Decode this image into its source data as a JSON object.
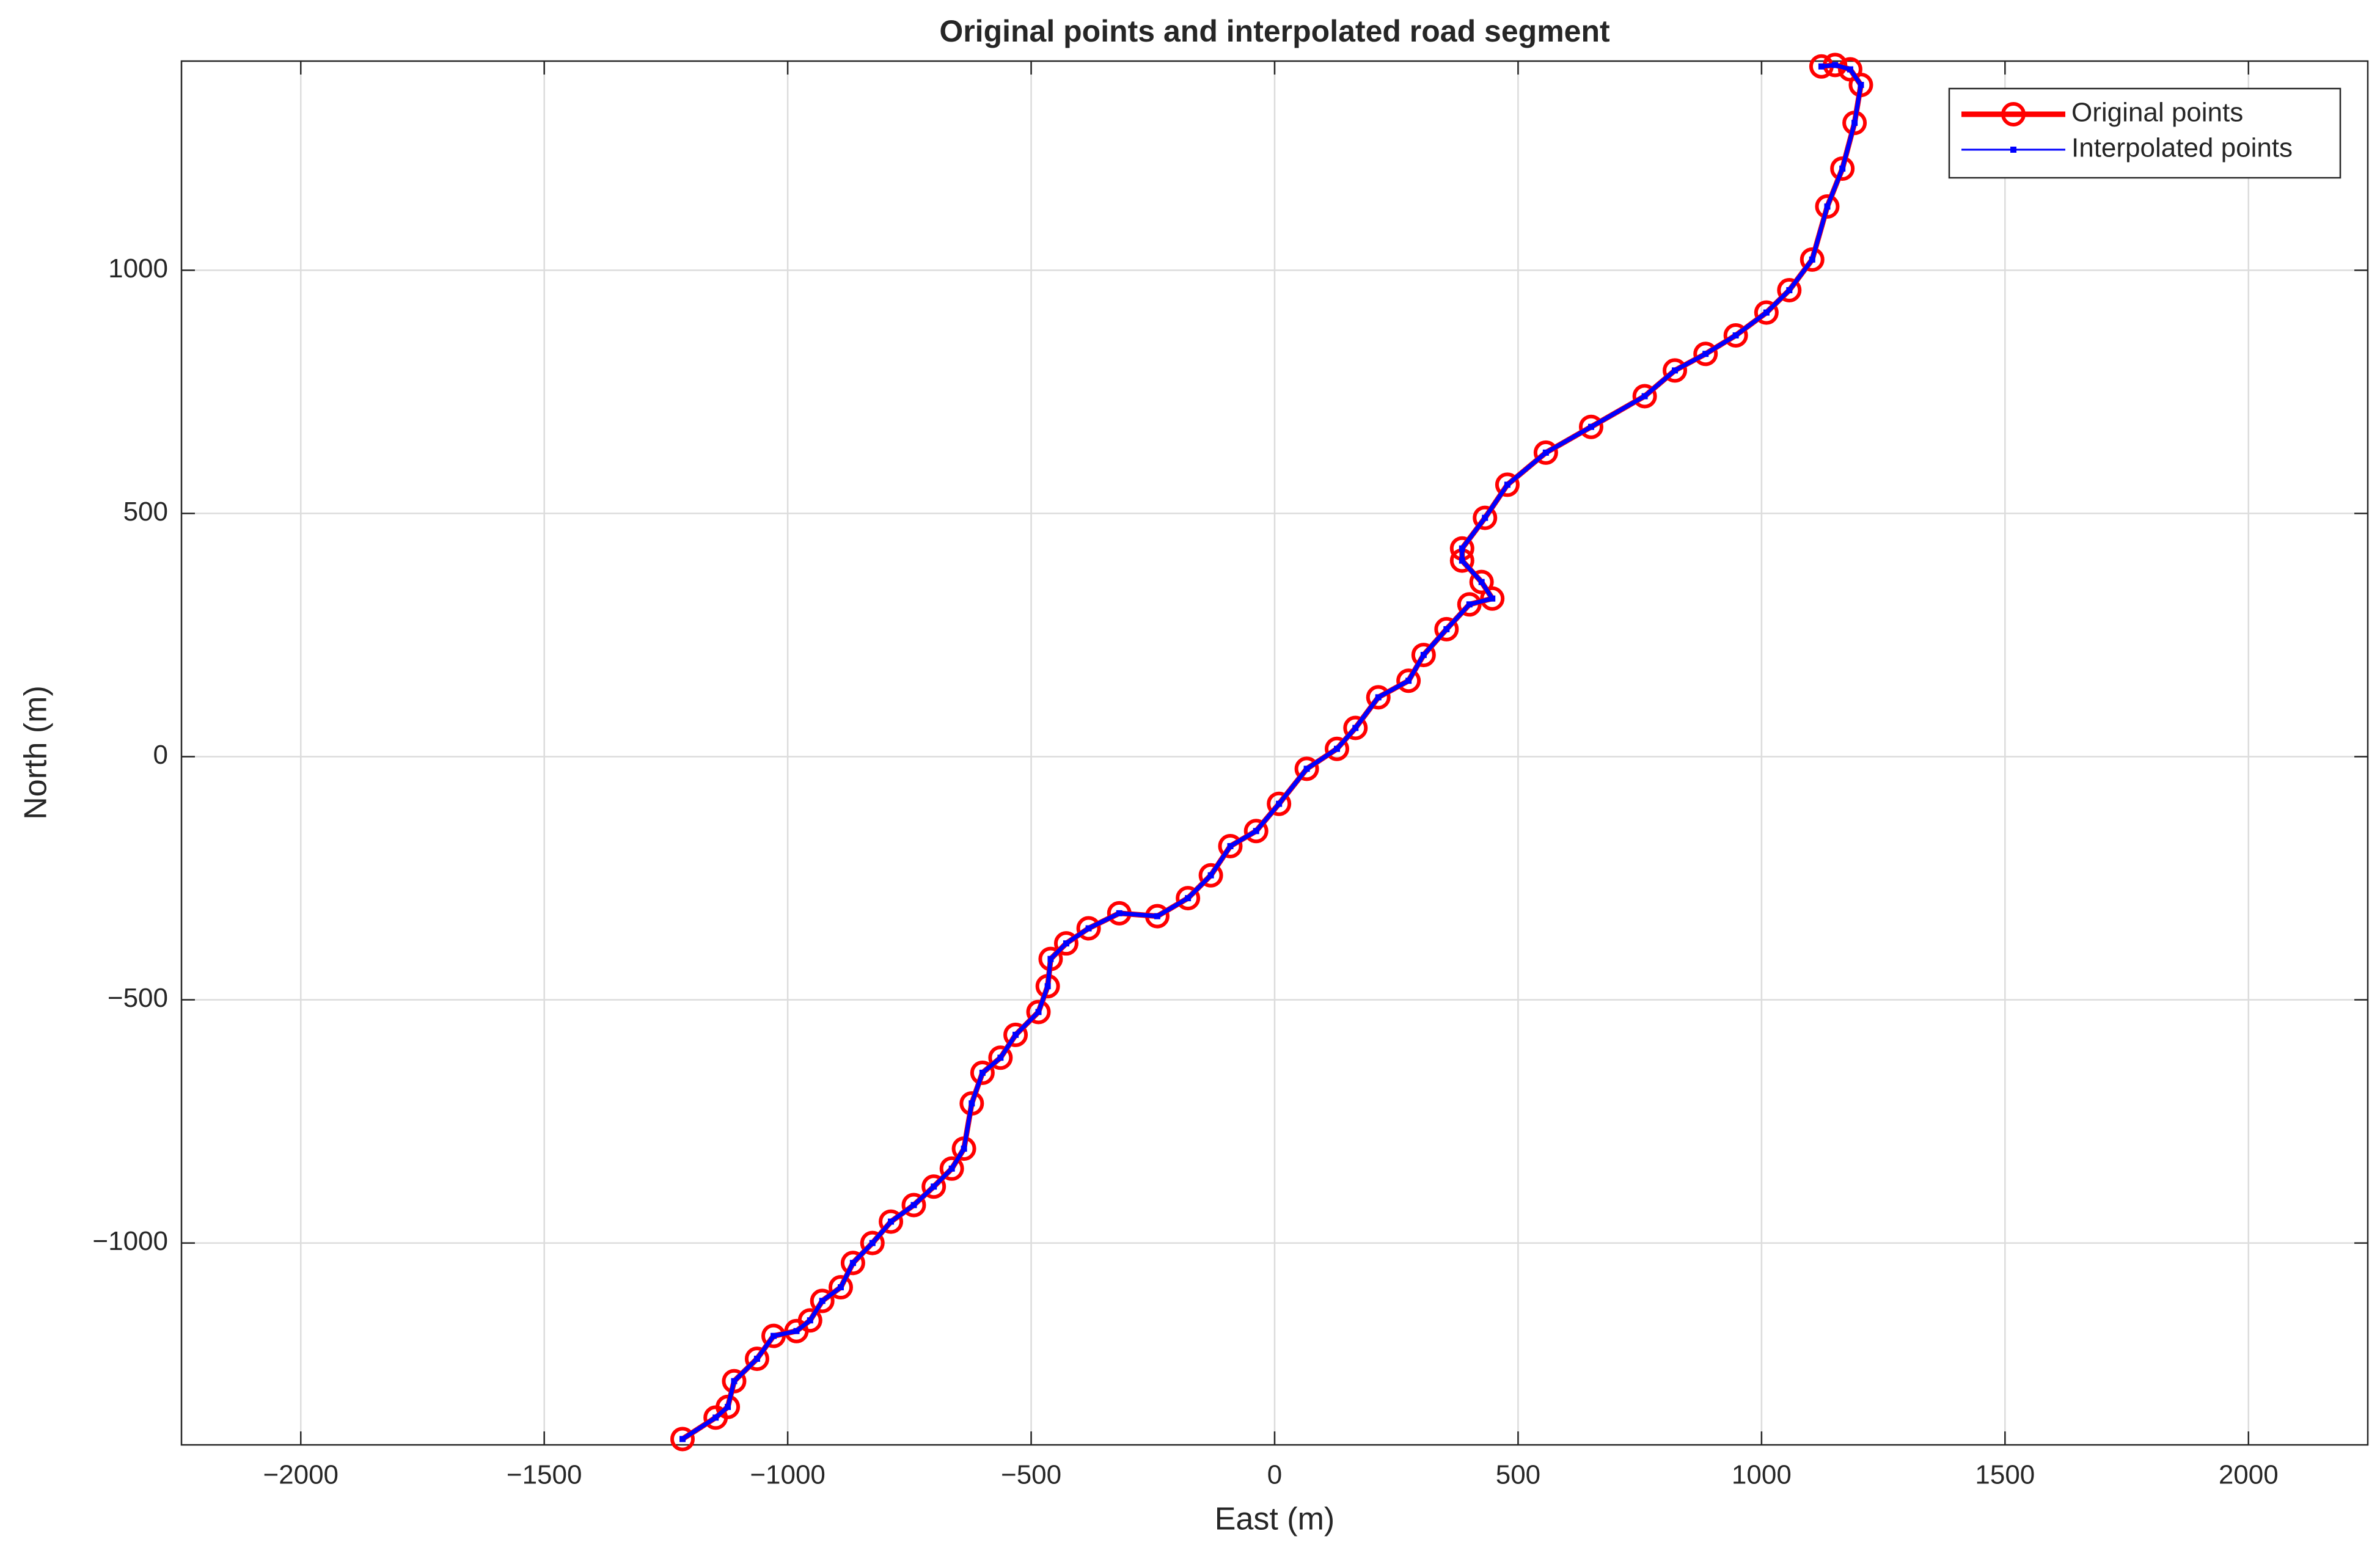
{
  "chart_data": {
    "type": "line",
    "title": "Original points and interpolated road segment",
    "x_label": "East (m)",
    "y_label": "North (m)",
    "xlim": [
      -2245,
      2245
    ],
    "ylim": [
      -1415,
      1430
    ],
    "xticks": [
      {
        "value": -2000,
        "label": "−2000"
      },
      {
        "value": -1500,
        "label": "−1500"
      },
      {
        "value": -1000,
        "label": "−1000"
      },
      {
        "value": -500,
        "label": "−500"
      },
      0,
      500,
      1000,
      1500,
      2000
    ],
    "yticks": [
      {
        "value": -1000,
        "label": "−1000"
      },
      {
        "value": -500,
        "label": "−500"
      },
      0,
      500,
      1000
    ],
    "grid": true,
    "legend": "northeast",
    "series": [
      {
        "name": "Original points",
        "color": "#ff0000",
        "marker": "circle",
        "x": [
          -1216,
          -1148,
          -1123,
          -1110,
          -1063,
          -1029,
          -982,
          -954,
          -929,
          -891,
          -866,
          -826,
          -788,
          -741,
          -700,
          -663,
          -638,
          -622,
          -600,
          -563,
          -532,
          -485,
          -466,
          -460,
          -428,
          -382,
          -319,
          -241,
          -178,
          -131,
          -91,
          -38,
          9,
          66,
          128,
          166,
          213,
          275,
          306,
          353,
          400,
          447,
          425,
          385,
          385,
          432,
          478,
          557,
          650,
          760,
          822,
          885,
          947,
          1010,
          1057,
          1104,
          1135,
          1166,
          1191,
          1204,
          1182,
          1151,
          1123
        ],
        "y": [
          -1403,
          -1359,
          -1337,
          -1284,
          -1238,
          -1191,
          -1181,
          -1159,
          -1119,
          -1091,
          -1041,
          -1000,
          -956,
          -922,
          -884,
          -847,
          -806,
          -713,
          -650,
          -619,
          -572,
          -525,
          -472,
          -416,
          -384,
          -353,
          -322,
          -328,
          -291,
          -244,
          -184,
          -153,
          -97,
          -25,
          16,
          59,
          122,
          156,
          209,
          262,
          313,
          325,
          359,
          403,
          428,
          491,
          559,
          625,
          678,
          741,
          794,
          828,
          866,
          913,
          959,
          1022,
          1131,
          1209,
          1303,
          1381,
          1413,
          1422,
          1419
        ]
      },
      {
        "name": "Interpolated points",
        "color": "#0000ff",
        "marker": "point",
        "x": [
          -1216,
          -1148,
          -1123,
          -1110,
          -1063,
          -1029,
          -982,
          -954,
          -929,
          -891,
          -866,
          -826,
          -788,
          -741,
          -700,
          -663,
          -638,
          -622,
          -600,
          -563,
          -532,
          -485,
          -466,
          -460,
          -428,
          -382,
          -319,
          -241,
          -178,
          -131,
          -91,
          -38,
          9,
          66,
          128,
          166,
          213,
          275,
          306,
          353,
          400,
          447,
          425,
          385,
          385,
          432,
          478,
          557,
          650,
          760,
          822,
          885,
          947,
          1010,
          1057,
          1104,
          1135,
          1166,
          1191,
          1204,
          1182,
          1151,
          1123
        ],
        "y": [
          -1403,
          -1359,
          -1337,
          -1284,
          -1238,
          -1191,
          -1181,
          -1159,
          -1119,
          -1091,
          -1041,
          -1000,
          -956,
          -922,
          -884,
          -847,
          -806,
          -713,
          -650,
          -619,
          -572,
          -525,
          -472,
          -416,
          -384,
          -353,
          -322,
          -328,
          -291,
          -244,
          -184,
          -153,
          -97,
          -25,
          16,
          59,
          122,
          156,
          209,
          262,
          313,
          325,
          359,
          403,
          428,
          491,
          559,
          625,
          678,
          741,
          794,
          828,
          866,
          913,
          959,
          1022,
          1131,
          1209,
          1303,
          1381,
          1413,
          1422,
          1419
        ]
      }
    ]
  }
}
